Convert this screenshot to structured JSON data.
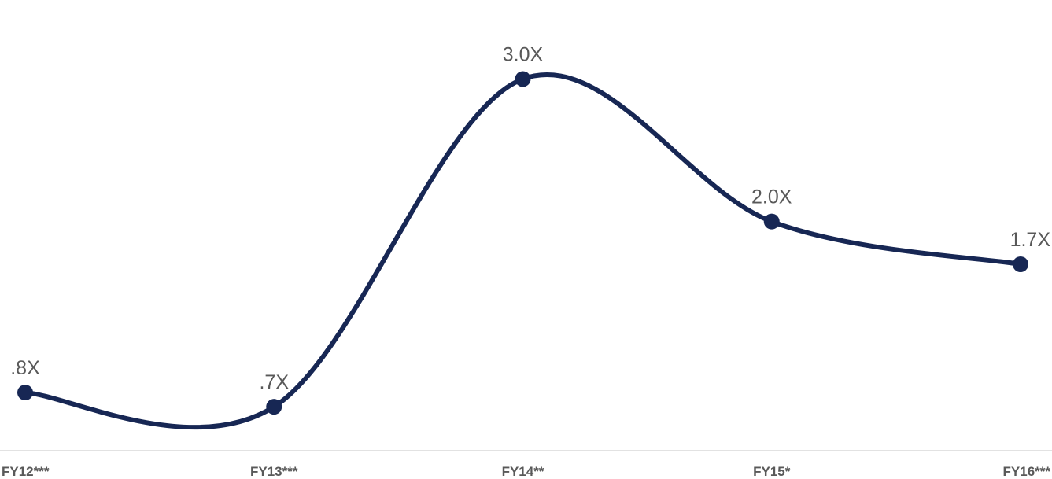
{
  "chart_data": {
    "type": "line",
    "categories": [
      "FY12***",
      "FY13***",
      "FY14**",
      "FY15*",
      "FY16***"
    ],
    "values": [
      0.8,
      0.7,
      3.0,
      2.0,
      1.7
    ],
    "data_labels": [
      ".8X",
      ".7X",
      "3.0X",
      "2.0X",
      "1.7X"
    ],
    "title": "",
    "xlabel": "",
    "ylabel": "",
    "ylim": [
      0,
      3.4
    ],
    "grid": false,
    "legend": "none",
    "smooth": true,
    "colors": {
      "line": "#172754",
      "marker": "#172754",
      "axis": "#d9d9d9",
      "text": "#595959"
    }
  }
}
